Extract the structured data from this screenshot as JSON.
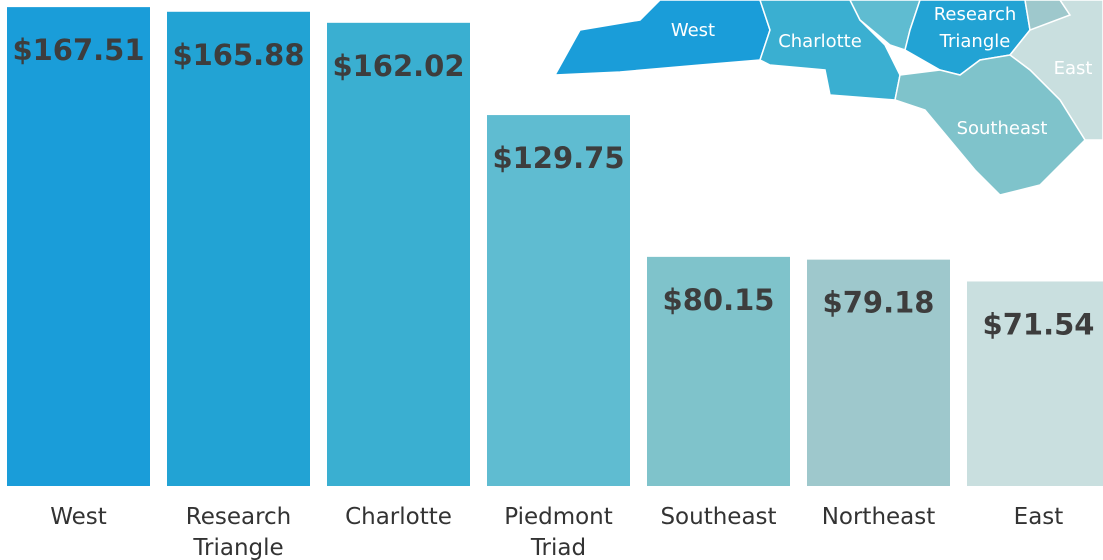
{
  "chart_data": {
    "type": "bar",
    "categories": [
      "West",
      "Research Triangle",
      "Charlotte",
      "Piedmont Triad",
      "Southeast",
      "Northeast",
      "East"
    ],
    "values": [
      167.51,
      165.88,
      162.02,
      129.75,
      80.15,
      79.18,
      71.54
    ],
    "value_labels": [
      "$167.51",
      "$165.88",
      "$162.02",
      "$129.75",
      "$80.15",
      "$79.18",
      "$71.54"
    ],
    "colors": [
      "#1a9dd9",
      "#22a3d4",
      "#3aafd1",
      "#5fbcd1",
      "#7fc3cb",
      "#9ec8cc",
      "#c9dfdf"
    ],
    "ylim": [
      0,
      170
    ],
    "map_labels": [
      "West",
      "Charlotte",
      "Research Triangle",
      "East",
      "Southeast"
    ]
  }
}
